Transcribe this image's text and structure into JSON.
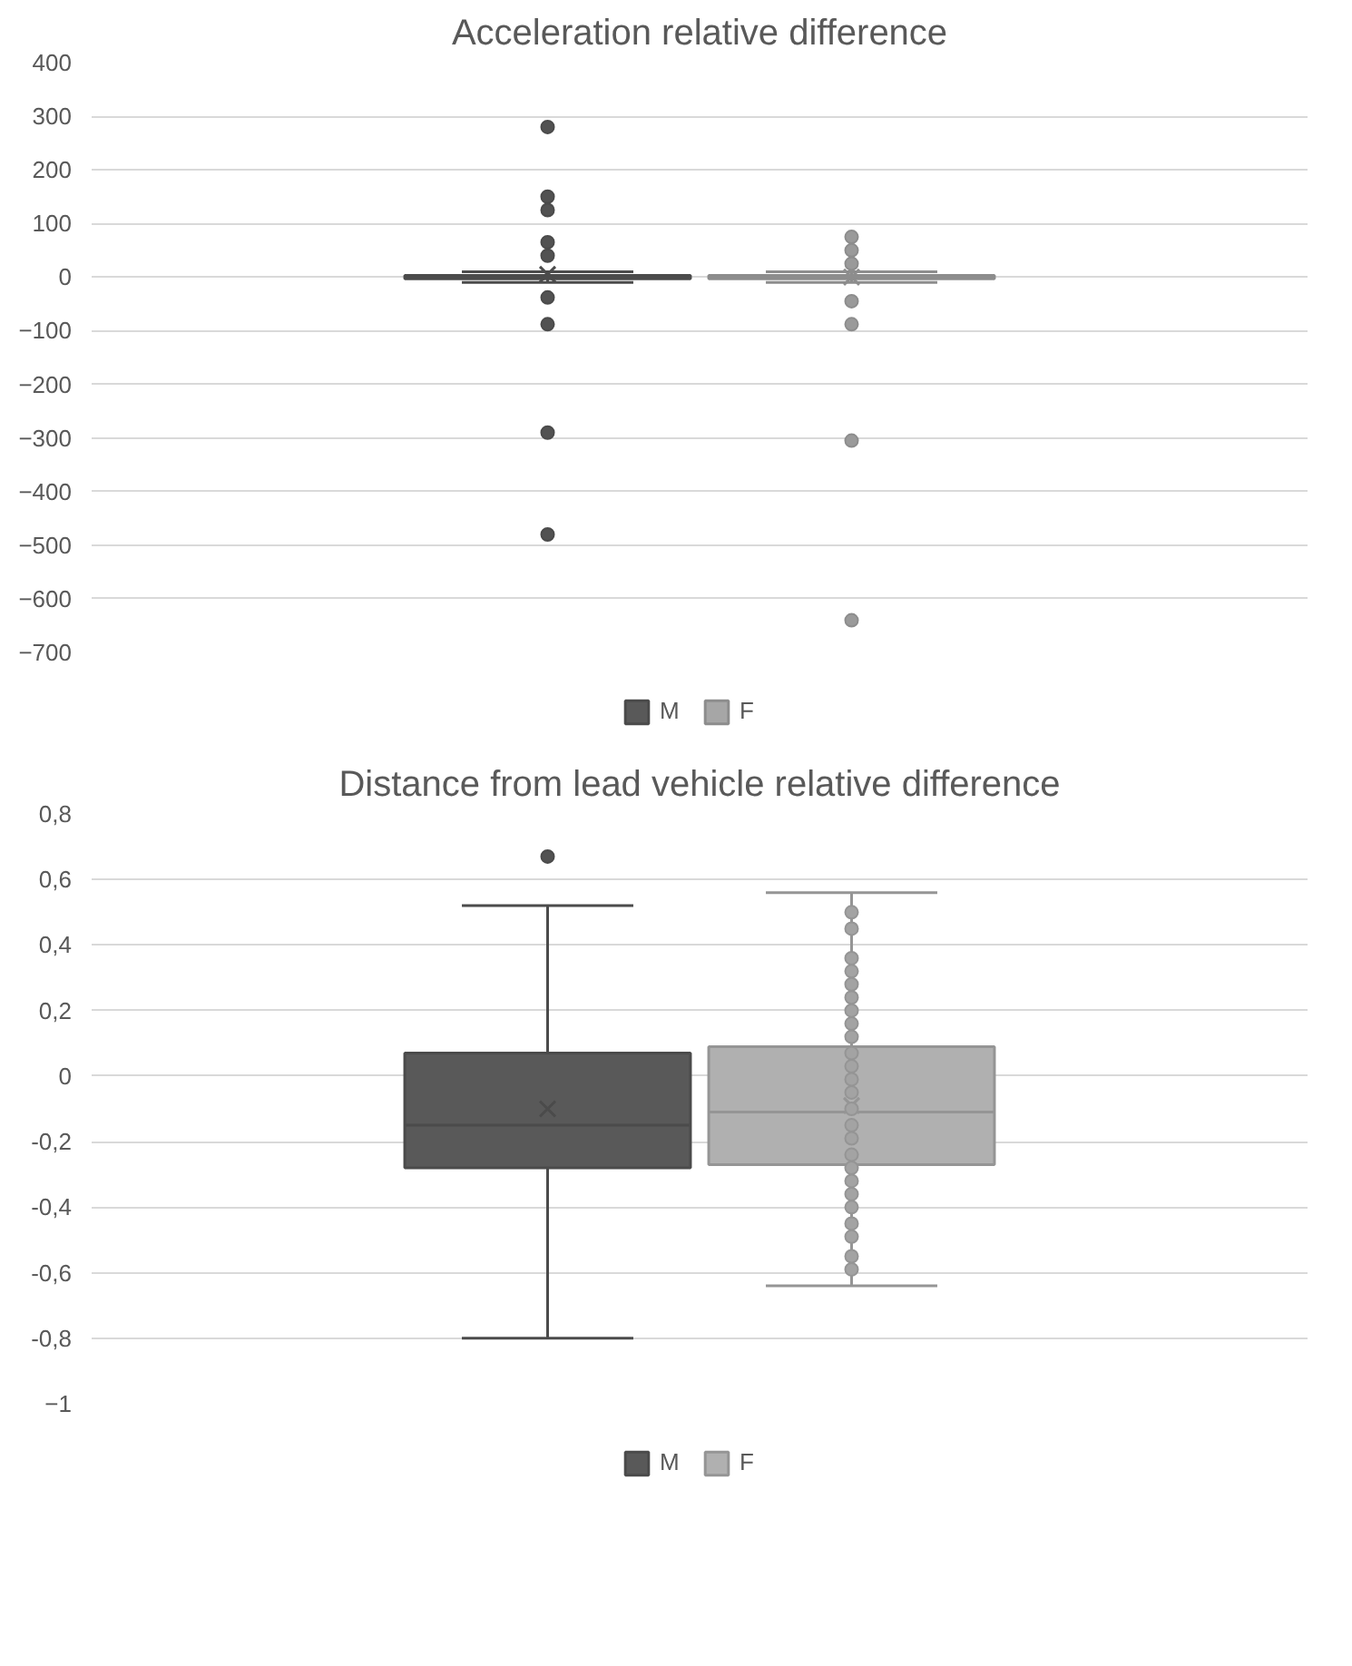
{
  "chart_data": [
    {
      "type": "box",
      "title": "Acceleration relative difference",
      "categories": [
        null
      ],
      "series": [
        {
          "name": "M",
          "color": "#595959",
          "boxes": [
            {
              "low": -10,
              "q1": -3,
              "median": 0,
              "q3": 3,
              "high": 10,
              "mean": 5,
              "outliers": [
                280,
                150,
                125,
                65,
                40,
                -38,
                -88,
                -290,
                -480
              ]
            }
          ]
        },
        {
          "name": "F",
          "color": "#a6a6a6",
          "boxes": [
            {
              "low": -10,
              "q1": -3,
              "median": 0,
              "q3": 3,
              "high": 10,
              "mean": 0,
              "outliers": [
                75,
                50,
                25,
                -45,
                -88,
                -305,
                -640
              ]
            }
          ]
        }
      ],
      "ylim": [
        -700,
        400
      ],
      "yticks": [
        -700,
        -600,
        -500,
        -400,
        -300,
        -200,
        -100,
        0,
        100,
        200,
        300,
        400
      ],
      "grid": "y",
      "legend": "bottom",
      "tick_labels": "y",
      "marker": "circle"
    },
    {
      "type": "box",
      "title": "Distance from lead vehicle relative difference",
      "categories": [
        null
      ],
      "series": [
        {
          "name": "M",
          "color": "#595959",
          "boxes": [
            {
              "low": -0.8,
              "q1": -0.28,
              "median": -0.15,
              "q3": 0.07,
              "high": 0.52,
              "mean": -0.1,
              "outliers": [
                0.67
              ]
            }
          ]
        },
        {
          "name": "F",
          "color": "#b0b0b0",
          "boxes": [
            {
              "low": -0.64,
              "q1": -0.27,
              "median": -0.11,
              "q3": 0.09,
              "high": 0.56,
              "mean": -0.09,
              "outliers": [
                0.5,
                0.45,
                0.36,
                0.32,
                0.28,
                0.24,
                0.2,
                0.16,
                0.12,
                0.07,
                0.03,
                -0.01,
                -0.05,
                -0.1,
                -0.15,
                -0.19,
                -0.24,
                -0.28,
                -0.32,
                -0.36,
                -0.4,
                -0.45,
                -0.49,
                -0.55,
                -0.59
              ]
            }
          ]
        }
      ],
      "ylim": [
        -1,
        0.8
      ],
      "yticks": [
        -1,
        {
          "value": -0.8,
          "label": "-0,8"
        },
        {
          "value": -0.6,
          "label": "-0,6"
        },
        {
          "value": -0.4,
          "label": "-0,4"
        },
        {
          "value": -0.2,
          "label": "-0,2"
        },
        0,
        {
          "value": 0.2,
          "label": "0,2"
        },
        {
          "value": 0.4,
          "label": "0,4"
        },
        {
          "value": 0.6,
          "label": "0,6"
        },
        {
          "value": 0.8,
          "label": "0,8"
        }
      ],
      "grid": "y",
      "legend": "bottom",
      "tick_labels": "y",
      "marker": "circle"
    }
  ]
}
